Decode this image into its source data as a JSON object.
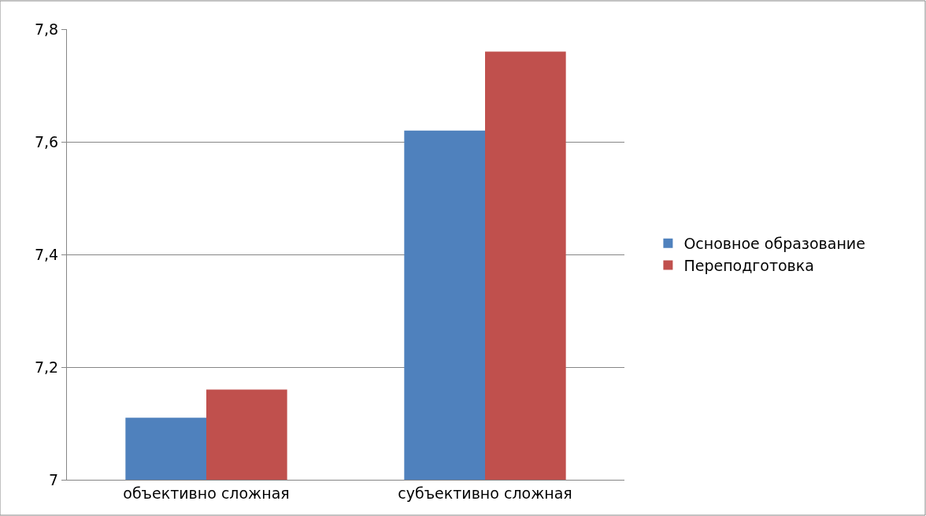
{
  "chart_data": {
    "type": "bar",
    "categories": [
      "объективно сложная",
      "субъективно сложная"
    ],
    "series": [
      {
        "name": "Основное образование",
        "color": "#4f81bd",
        "values": [
          7.11,
          7.62
        ]
      },
      {
        "name": "Переподготовка",
        "color": "#c0504d",
        "values": [
          7.16,
          7.76
        ]
      }
    ],
    "ylim": [
      7,
      7.8
    ],
    "yticks": [
      7,
      {
        "value": 7.2,
        "label": "7,2"
      },
      {
        "value": 7.4,
        "label": "7,4"
      },
      {
        "value": 7.6,
        "label": "7,6"
      },
      {
        "value": 7.8,
        "label": "7,8"
      }
    ],
    "grid": "y",
    "legend": "right"
  }
}
